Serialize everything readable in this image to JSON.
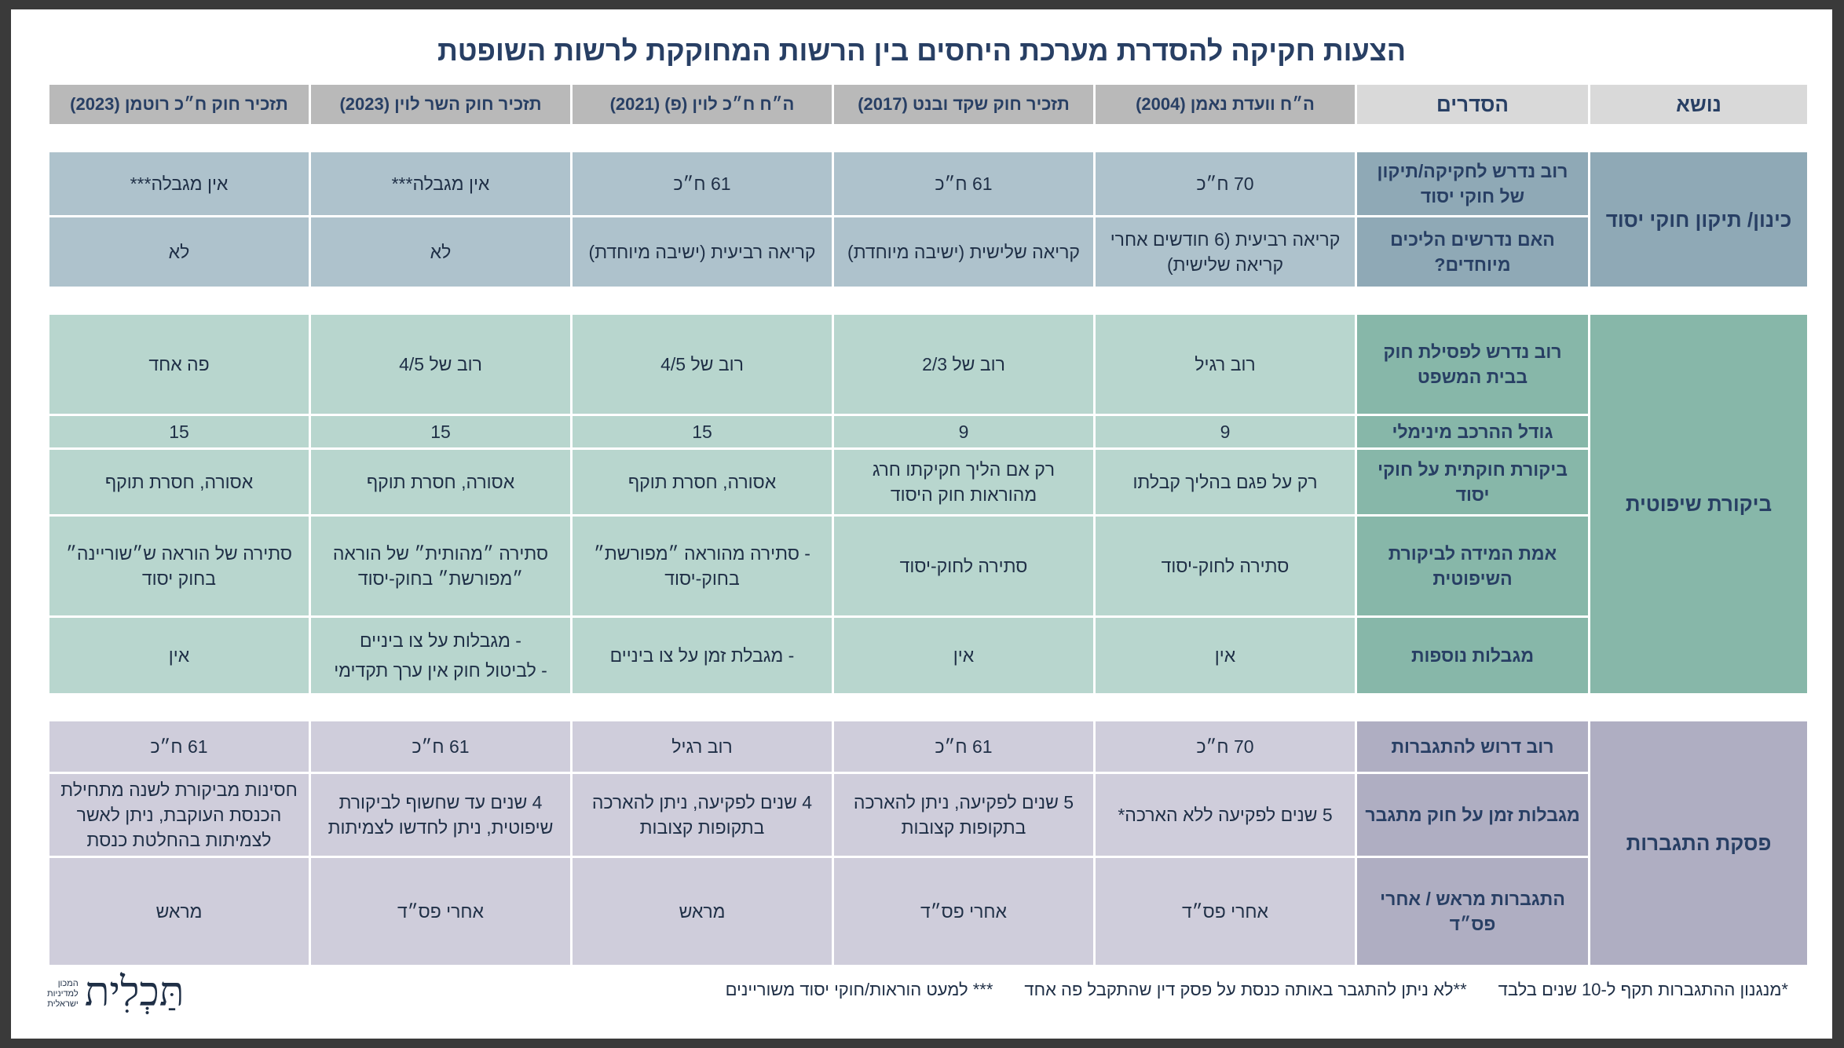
{
  "title": "הצעות חקיקה להסדרת מערכת היחסים בין הרשות המחוקקת לרשות השופטת",
  "header": {
    "topic": "נושא",
    "arrangements": "הסדרים",
    "columns": [
      "ה״ח וועדת נאמן (2004)",
      "תזכיר חוק שקד ובנט (2017)",
      "ה״ח ח״כ לוין (פ) (2021)",
      "תזכיר חוק השר לוין (2023)",
      "תזכיר חוק ח״כ רוטמן (2023)"
    ]
  },
  "sections": [
    {
      "topic": "כינון/ תיקון חוקי יסוד",
      "rows": [
        {
          "key": "רוב נדרש לחקיקה/תיקון של חוקי יסוד",
          "values": [
            "70 ח״כ",
            "61 ח״כ",
            "61 ח״כ",
            "אין מגבלה***",
            "אין מגבלה***"
          ]
        },
        {
          "key": "האם נדרשים הליכים מיוחדים?",
          "values": [
            "קריאה רביעית (6 חודשים אחרי קריאה שלישית)",
            "קריאה שלישית (ישיבה מיוחדת)",
            "קריאה רביעית (ישיבה מיוחדת)",
            "לא",
            "לא"
          ]
        }
      ]
    },
    {
      "topic": "ביקורת שיפוטית",
      "rows": [
        {
          "key": "רוב נדרש לפסילת חוק בבית המשפט",
          "values": [
            "רוב רגיל",
            "רוב של 2/3",
            "רוב של 4/5",
            "רוב של 4/5",
            "פה אחד"
          ]
        },
        {
          "key": "גודל ההרכב מינימלי",
          "values": [
            "9",
            "9",
            "15",
            "15",
            "15"
          ]
        },
        {
          "key": "ביקורת חוקתית על חוקי יסוד",
          "values": [
            "רק על פגם בהליך קבלתו",
            "רק אם הליך חקיקתו חרג מהוראות חוק היסוד",
            "אסורה, חסרת תוקף",
            "אסורה, חסרת תוקף",
            "אסורה, חסרת תוקף"
          ]
        },
        {
          "key": "אמת המידה לביקורת השיפוטית",
          "values": [
            "סתירה לחוק-יסוד",
            "סתירה לחוק-יסוד",
            "- סתירה מהוראה ״מפורשת״ בחוק-יסוד",
            "סתירה ״מהותית״ של הוראה ״מפורשת״ בחוק-יסוד",
            "סתירה של הוראה ש״שוריינה״ בחוק יסוד"
          ]
        },
        {
          "key": "מגבלות נוספות",
          "values": [
            "אין",
            "אין",
            "- מגבלת זמן על צו ביניים",
            "- מגבלות על צו ביניים|- לביטול חוק אין ערך תקדימי",
            "אין"
          ]
        }
      ]
    },
    {
      "topic": "פסקת התגברות",
      "rows": [
        {
          "key": "רוב דרוש להתגברות",
          "values": [
            "70 ח״כ",
            "61 ח״כ",
            "רוב רגיל",
            "61 ח״כ",
            "61 ח״כ"
          ]
        },
        {
          "key": "מגבלות זמן על חוק מתגבר",
          "values": [
            "5 שנים לפקיעה ללא הארכה*",
            "5 שנים לפקיעה, ניתן להארכה בתקופות קצובות",
            "4 שנים לפקיעה, ניתן להארכה בתקופות קצובות",
            "4 שנים עד שחשוף לביקורת שיפוטית, ניתן לחדשו לצמיתות",
            "חסינות מביקורת לשנה מתחילת הכנסת העוקבת, ניתן לאשר לצמיתות בהחלטת כנסת"
          ]
        },
        {
          "key": "התגברות מראש / אחרי פס״ד",
          "values": [
            "אחרי פס״ד",
            "אחרי פס״ד",
            "מראש",
            "אחרי פס״ד",
            "מראש"
          ]
        }
      ]
    }
  ],
  "footnotes": [
    "*מנגנון ההתגברות תקף ל-10 שנים בלבד",
    "**לא ניתן להתגבר באותה כנסת על פסק דין שהתקבל פה אחד",
    "*** למעט הוראות/חוקי יסוד משוריינים"
  ],
  "logo": {
    "mark": "תַּכְלִית",
    "subtitle": [
      "המכון",
      "למדיניות",
      "ישראלית"
    ]
  }
}
